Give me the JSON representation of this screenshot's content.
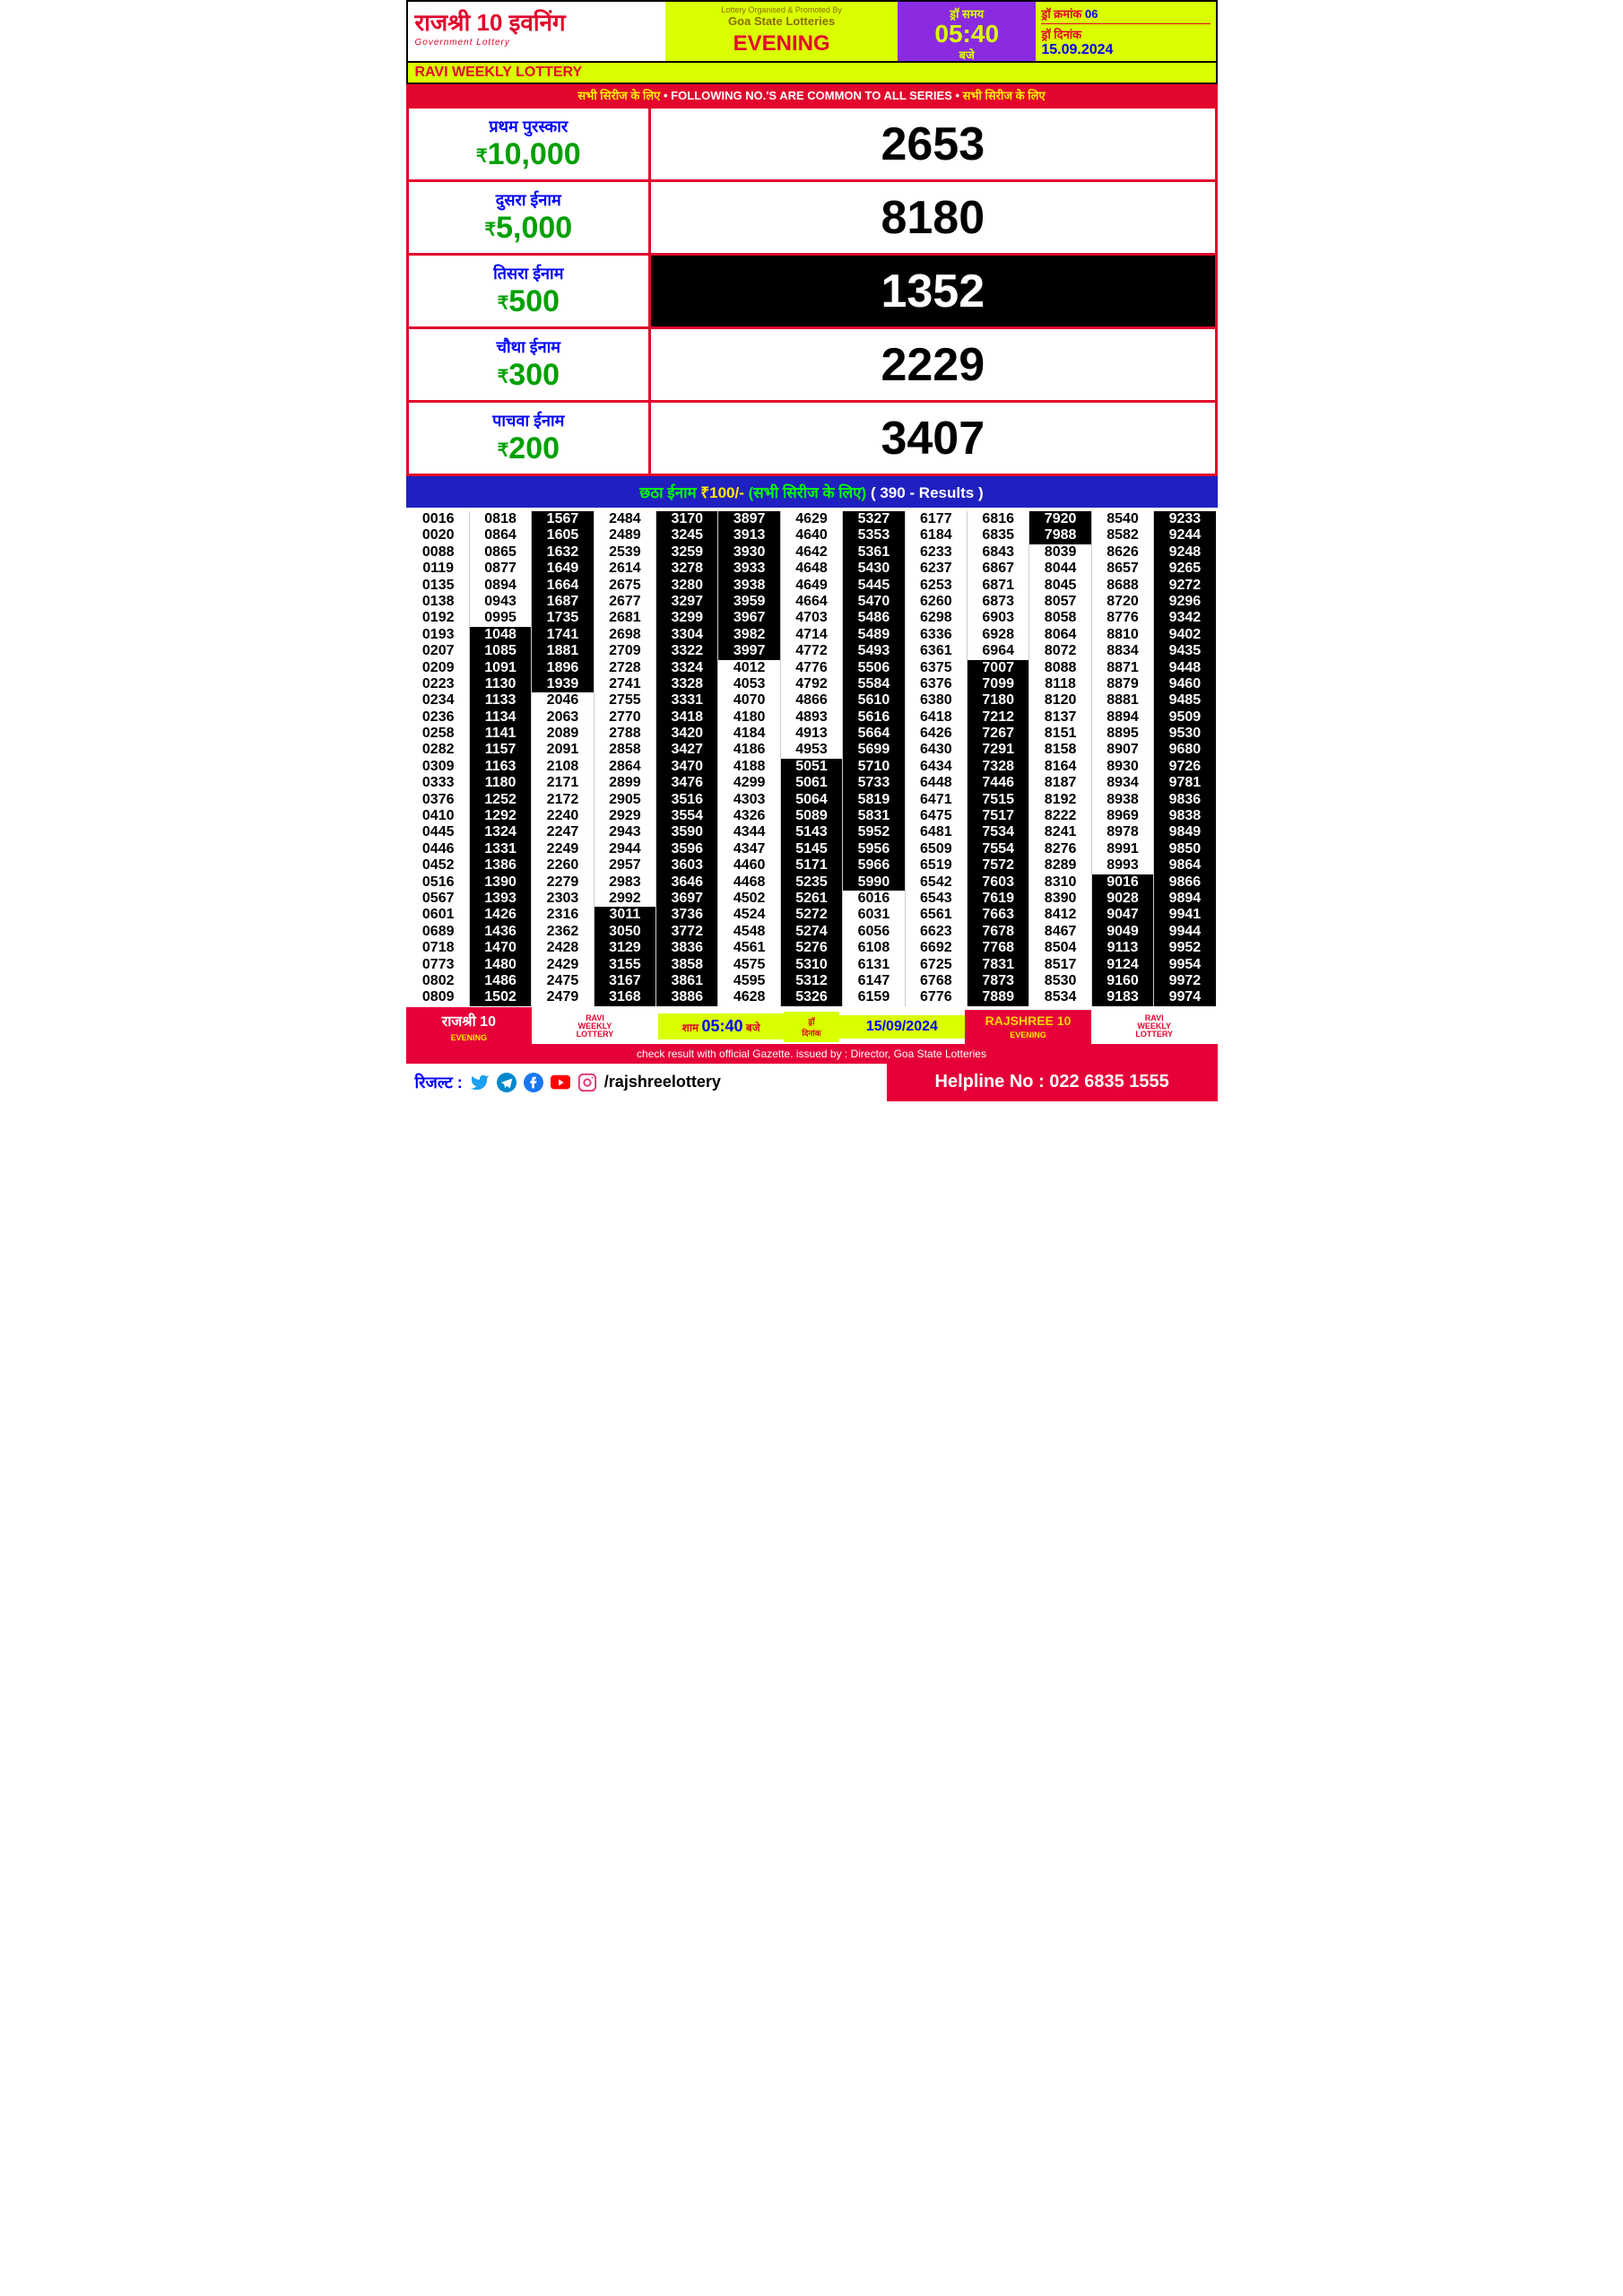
{
  "header": {
    "title": "राजश्री 10 इवनिंग",
    "subtitle": "Government Lottery",
    "organised_by": "Lottery Organised & Promoted By",
    "org_name": "Goa State Lotteries",
    "evening": "EVENING",
    "draw_time_label": "ड्रॉ समय",
    "draw_time": "05:40",
    "draw_time_suffix": "बजे",
    "draw_no_label": "ड्रॉ क्रमांक",
    "draw_no": "06",
    "draw_date_label": "ड्रॉ दिनांक",
    "draw_date": "15.09.2024",
    "ravi": "RAVI WEEKLY LOTTERY"
  },
  "common_bar": {
    "hi": "सभी सिरीज के लिए",
    "en": "FOLLOWING NO.'S ARE COMMON TO ALL SERIES"
  },
  "prizes": [
    {
      "name": "प्रथम पुरस्कार",
      "amount": "10,000",
      "number": "2653",
      "inv": false
    },
    {
      "name": "दुसरा ईनाम",
      "amount": "5,000",
      "number": "8180",
      "inv": false
    },
    {
      "name": "तिसरा ईनाम",
      "amount": "500",
      "number": "1352",
      "inv": true
    },
    {
      "name": "चौथा ईनाम",
      "amount": "300",
      "number": "2229",
      "inv": false
    },
    {
      "name": "पाचवा ईनाम",
      "amount": "200",
      "number": "3407",
      "inv": false
    }
  ],
  "sixth": {
    "label": "छठा ईनाम",
    "amount": "₹100/-",
    "note": "(सभी सिरीज के लिए)",
    "results": "( 390 - Results )"
  },
  "columns": [
    [
      {
        "n": "0016"
      },
      {
        "n": "0020"
      },
      {
        "n": "0088"
      },
      {
        "n": "0119"
      },
      {
        "n": "0135"
      },
      {
        "n": "0138"
      },
      {
        "n": "0192"
      },
      {
        "n": "0193"
      },
      {
        "n": "0207"
      },
      {
        "n": "0209"
      },
      {
        "n": "0223"
      },
      {
        "n": "0234"
      },
      {
        "n": "0236"
      },
      {
        "n": "0258"
      },
      {
        "n": "0282"
      },
      {
        "n": "0309"
      },
      {
        "n": "0333"
      },
      {
        "n": "0376"
      },
      {
        "n": "0410"
      },
      {
        "n": "0445"
      },
      {
        "n": "0446"
      },
      {
        "n": "0452"
      },
      {
        "n": "0516"
      },
      {
        "n": "0567"
      },
      {
        "n": "0601"
      },
      {
        "n": "0689"
      },
      {
        "n": "0718"
      },
      {
        "n": "0773"
      },
      {
        "n": "0802"
      },
      {
        "n": "0809"
      }
    ],
    [
      {
        "n": "0818"
      },
      {
        "n": "0864"
      },
      {
        "n": "0865"
      },
      {
        "n": "0877"
      },
      {
        "n": "0894"
      },
      {
        "n": "0943"
      },
      {
        "n": "0995"
      },
      {
        "n": "1048",
        "i": 1
      },
      {
        "n": "1085",
        "i": 1
      },
      {
        "n": "1091",
        "i": 1
      },
      {
        "n": "1130",
        "i": 1
      },
      {
        "n": "1133",
        "i": 1
      },
      {
        "n": "1134",
        "i": 1
      },
      {
        "n": "1141",
        "i": 1
      },
      {
        "n": "1157",
        "i": 1
      },
      {
        "n": "1163",
        "i": 1
      },
      {
        "n": "1180",
        "i": 1
      },
      {
        "n": "1252",
        "i": 1
      },
      {
        "n": "1292",
        "i": 1
      },
      {
        "n": "1324",
        "i": 1
      },
      {
        "n": "1331",
        "i": 1
      },
      {
        "n": "1386",
        "i": 1
      },
      {
        "n": "1390",
        "i": 1
      },
      {
        "n": "1393",
        "i": 1
      },
      {
        "n": "1426",
        "i": 1
      },
      {
        "n": "1436",
        "i": 1
      },
      {
        "n": "1470",
        "i": 1
      },
      {
        "n": "1480",
        "i": 1
      },
      {
        "n": "1486",
        "i": 1
      },
      {
        "n": "1502",
        "i": 1
      }
    ],
    [
      {
        "n": "1567",
        "i": 1
      },
      {
        "n": "1605",
        "i": 1
      },
      {
        "n": "1632",
        "i": 1
      },
      {
        "n": "1649",
        "i": 1
      },
      {
        "n": "1664",
        "i": 1
      },
      {
        "n": "1687",
        "i": 1
      },
      {
        "n": "1735",
        "i": 1
      },
      {
        "n": "1741",
        "i": 1
      },
      {
        "n": "1881",
        "i": 1
      },
      {
        "n": "1896",
        "i": 1
      },
      {
        "n": "1939",
        "i": 1
      },
      {
        "n": "2046"
      },
      {
        "n": "2063"
      },
      {
        "n": "2089"
      },
      {
        "n": "2091"
      },
      {
        "n": "2108"
      },
      {
        "n": "2171"
      },
      {
        "n": "2172"
      },
      {
        "n": "2240"
      },
      {
        "n": "2247"
      },
      {
        "n": "2249"
      },
      {
        "n": "2260"
      },
      {
        "n": "2279"
      },
      {
        "n": "2303"
      },
      {
        "n": "2316"
      },
      {
        "n": "2362"
      },
      {
        "n": "2428"
      },
      {
        "n": "2429"
      },
      {
        "n": "2475"
      },
      {
        "n": "2479"
      }
    ],
    [
      {
        "n": "2484"
      },
      {
        "n": "2489"
      },
      {
        "n": "2539"
      },
      {
        "n": "2614"
      },
      {
        "n": "2675"
      },
      {
        "n": "2677"
      },
      {
        "n": "2681"
      },
      {
        "n": "2698"
      },
      {
        "n": "2709"
      },
      {
        "n": "2728"
      },
      {
        "n": "2741"
      },
      {
        "n": "2755"
      },
      {
        "n": "2770"
      },
      {
        "n": "2788"
      },
      {
        "n": "2858"
      },
      {
        "n": "2864"
      },
      {
        "n": "2899"
      },
      {
        "n": "2905"
      },
      {
        "n": "2929"
      },
      {
        "n": "2943"
      },
      {
        "n": "2944"
      },
      {
        "n": "2957"
      },
      {
        "n": "2983"
      },
      {
        "n": "2992"
      },
      {
        "n": "3011",
        "i": 1
      },
      {
        "n": "3050",
        "i": 1
      },
      {
        "n": "3129",
        "i": 1
      },
      {
        "n": "3155",
        "i": 1
      },
      {
        "n": "3167",
        "i": 1
      },
      {
        "n": "3168",
        "i": 1
      }
    ],
    [
      {
        "n": "3170",
        "i": 1
      },
      {
        "n": "3245",
        "i": 1
      },
      {
        "n": "3259",
        "i": 1
      },
      {
        "n": "3278",
        "i": 1
      },
      {
        "n": "3280",
        "i": 1
      },
      {
        "n": "3297",
        "i": 1
      },
      {
        "n": "3299",
        "i": 1
      },
      {
        "n": "3304",
        "i": 1
      },
      {
        "n": "3322",
        "i": 1
      },
      {
        "n": "3324",
        "i": 1
      },
      {
        "n": "3328",
        "i": 1
      },
      {
        "n": "3331",
        "i": 1
      },
      {
        "n": "3418",
        "i": 1
      },
      {
        "n": "3420",
        "i": 1
      },
      {
        "n": "3427",
        "i": 1
      },
      {
        "n": "3470",
        "i": 1
      },
      {
        "n": "3476",
        "i": 1
      },
      {
        "n": "3516",
        "i": 1
      },
      {
        "n": "3554",
        "i": 1
      },
      {
        "n": "3590",
        "i": 1
      },
      {
        "n": "3596",
        "i": 1
      },
      {
        "n": "3603",
        "i": 1
      },
      {
        "n": "3646",
        "i": 1
      },
      {
        "n": "3697",
        "i": 1
      },
      {
        "n": "3736",
        "i": 1
      },
      {
        "n": "3772",
        "i": 1
      },
      {
        "n": "3836",
        "i": 1
      },
      {
        "n": "3858",
        "i": 1
      },
      {
        "n": "3861",
        "i": 1
      },
      {
        "n": "3886",
        "i": 1
      }
    ],
    [
      {
        "n": "3897",
        "i": 1
      },
      {
        "n": "3913",
        "i": 1
      },
      {
        "n": "3930",
        "i": 1
      },
      {
        "n": "3933",
        "i": 1
      },
      {
        "n": "3938",
        "i": 1
      },
      {
        "n": "3959",
        "i": 1
      },
      {
        "n": "3967",
        "i": 1
      },
      {
        "n": "3982",
        "i": 1
      },
      {
        "n": "3997",
        "i": 1
      },
      {
        "n": "4012"
      },
      {
        "n": "4053"
      },
      {
        "n": "4070"
      },
      {
        "n": "4180"
      },
      {
        "n": "4184"
      },
      {
        "n": "4186"
      },
      {
        "n": "4188"
      },
      {
        "n": "4299"
      },
      {
        "n": "4303"
      },
      {
        "n": "4326"
      },
      {
        "n": "4344"
      },
      {
        "n": "4347"
      },
      {
        "n": "4460"
      },
      {
        "n": "4468"
      },
      {
        "n": "4502"
      },
      {
        "n": "4524"
      },
      {
        "n": "4548"
      },
      {
        "n": "4561"
      },
      {
        "n": "4575"
      },
      {
        "n": "4595"
      },
      {
        "n": "4628"
      }
    ],
    [
      {
        "n": "4629"
      },
      {
        "n": "4640"
      },
      {
        "n": "4642"
      },
      {
        "n": "4648"
      },
      {
        "n": "4649"
      },
      {
        "n": "4664"
      },
      {
        "n": "4703"
      },
      {
        "n": "4714"
      },
      {
        "n": "4772"
      },
      {
        "n": "4776"
      },
      {
        "n": "4792"
      },
      {
        "n": "4866"
      },
      {
        "n": "4893"
      },
      {
        "n": "4913"
      },
      {
        "n": "4953"
      },
      {
        "n": "5051",
        "i": 1
      },
      {
        "n": "5061",
        "i": 1
      },
      {
        "n": "5064",
        "i": 1
      },
      {
        "n": "5089",
        "i": 1
      },
      {
        "n": "5143",
        "i": 1
      },
      {
        "n": "5145",
        "i": 1
      },
      {
        "n": "5171",
        "i": 1
      },
      {
        "n": "5235",
        "i": 1
      },
      {
        "n": "5261",
        "i": 1
      },
      {
        "n": "5272",
        "i": 1
      },
      {
        "n": "5274",
        "i": 1
      },
      {
        "n": "5276",
        "i": 1
      },
      {
        "n": "5310",
        "i": 1
      },
      {
        "n": "5312",
        "i": 1
      },
      {
        "n": "5326",
        "i": 1
      }
    ],
    [
      {
        "n": "5327",
        "i": 1
      },
      {
        "n": "5353",
        "i": 1
      },
      {
        "n": "5361",
        "i": 1
      },
      {
        "n": "5430",
        "i": 1
      },
      {
        "n": "5445",
        "i": 1
      },
      {
        "n": "5470",
        "i": 1
      },
      {
        "n": "5486",
        "i": 1
      },
      {
        "n": "5489",
        "i": 1
      },
      {
        "n": "5493",
        "i": 1
      },
      {
        "n": "5506",
        "i": 1
      },
      {
        "n": "5584",
        "i": 1
      },
      {
        "n": "5610",
        "i": 1
      },
      {
        "n": "5616",
        "i": 1
      },
      {
        "n": "5664",
        "i": 1
      },
      {
        "n": "5699",
        "i": 1
      },
      {
        "n": "5710",
        "i": 1
      },
      {
        "n": "5733",
        "i": 1
      },
      {
        "n": "5819",
        "i": 1
      },
      {
        "n": "5831",
        "i": 1
      },
      {
        "n": "5952",
        "i": 1
      },
      {
        "n": "5956",
        "i": 1
      },
      {
        "n": "5966",
        "i": 1
      },
      {
        "n": "5990",
        "i": 1
      },
      {
        "n": "6016"
      },
      {
        "n": "6031"
      },
      {
        "n": "6056"
      },
      {
        "n": "6108"
      },
      {
        "n": "6131"
      },
      {
        "n": "6147"
      },
      {
        "n": "6159"
      }
    ],
    [
      {
        "n": "6177"
      },
      {
        "n": "6184"
      },
      {
        "n": "6233"
      },
      {
        "n": "6237"
      },
      {
        "n": "6253"
      },
      {
        "n": "6260"
      },
      {
        "n": "6298"
      },
      {
        "n": "6336"
      },
      {
        "n": "6361"
      },
      {
        "n": "6375"
      },
      {
        "n": "6376"
      },
      {
        "n": "6380"
      },
      {
        "n": "6418"
      },
      {
        "n": "6426"
      },
      {
        "n": "6430"
      },
      {
        "n": "6434"
      },
      {
        "n": "6448"
      },
      {
        "n": "6471"
      },
      {
        "n": "6475"
      },
      {
        "n": "6481"
      },
      {
        "n": "6509"
      },
      {
        "n": "6519"
      },
      {
        "n": "6542"
      },
      {
        "n": "6543"
      },
      {
        "n": "6561"
      },
      {
        "n": "6623"
      },
      {
        "n": "6692"
      },
      {
        "n": "6725"
      },
      {
        "n": "6768"
      },
      {
        "n": "6776"
      }
    ],
    [
      {
        "n": "6816"
      },
      {
        "n": "6835"
      },
      {
        "n": "6843"
      },
      {
        "n": "6867"
      },
      {
        "n": "6871"
      },
      {
        "n": "6873"
      },
      {
        "n": "6903"
      },
      {
        "n": "6928"
      },
      {
        "n": "6964"
      },
      {
        "n": "7007",
        "i": 1
      },
      {
        "n": "7099",
        "i": 1
      },
      {
        "n": "7180",
        "i": 1
      },
      {
        "n": "7212",
        "i": 1
      },
      {
        "n": "7267",
        "i": 1
      },
      {
        "n": "7291",
        "i": 1
      },
      {
        "n": "7328",
        "i": 1
      },
      {
        "n": "7446",
        "i": 1
      },
      {
        "n": "7515",
        "i": 1
      },
      {
        "n": "7517",
        "i": 1
      },
      {
        "n": "7534",
        "i": 1
      },
      {
        "n": "7554",
        "i": 1
      },
      {
        "n": "7572",
        "i": 1
      },
      {
        "n": "7603",
        "i": 1
      },
      {
        "n": "7619",
        "i": 1
      },
      {
        "n": "7663",
        "i": 1
      },
      {
        "n": "7678",
        "i": 1
      },
      {
        "n": "7768",
        "i": 1
      },
      {
        "n": "7831",
        "i": 1
      },
      {
        "n": "7873",
        "i": 1
      },
      {
        "n": "7889",
        "i": 1
      }
    ],
    [
      {
        "n": "7920",
        "i": 1
      },
      {
        "n": "7988",
        "i": 1
      },
      {
        "n": "8039"
      },
      {
        "n": "8044"
      },
      {
        "n": "8045"
      },
      {
        "n": "8057"
      },
      {
        "n": "8058"
      },
      {
        "n": "8064"
      },
      {
        "n": "8072"
      },
      {
        "n": "8088"
      },
      {
        "n": "8118"
      },
      {
        "n": "8120"
      },
      {
        "n": "8137"
      },
      {
        "n": "8151"
      },
      {
        "n": "8158"
      },
      {
        "n": "8164"
      },
      {
        "n": "8187"
      },
      {
        "n": "8192"
      },
      {
        "n": "8222"
      },
      {
        "n": "8241"
      },
      {
        "n": "8276"
      },
      {
        "n": "8289"
      },
      {
        "n": "8310"
      },
      {
        "n": "8390"
      },
      {
        "n": "8412"
      },
      {
        "n": "8467"
      },
      {
        "n": "8504"
      },
      {
        "n": "8517"
      },
      {
        "n": "8530"
      },
      {
        "n": "8534"
      }
    ],
    [
      {
        "n": "8540"
      },
      {
        "n": "8582"
      },
      {
        "n": "8626"
      },
      {
        "n": "8657"
      },
      {
        "n": "8688"
      },
      {
        "n": "8720"
      },
      {
        "n": "8776"
      },
      {
        "n": "8810"
      },
      {
        "n": "8834"
      },
      {
        "n": "8871"
      },
      {
        "n": "8879"
      },
      {
        "n": "8881"
      },
      {
        "n": "8894"
      },
      {
        "n": "8895"
      },
      {
        "n": "8907"
      },
      {
        "n": "8930"
      },
      {
        "n": "8934"
      },
      {
        "n": "8938"
      },
      {
        "n": "8969"
      },
      {
        "n": "8978"
      },
      {
        "n": "8991"
      },
      {
        "n": "8993"
      },
      {
        "n": "9016",
        "i": 1
      },
      {
        "n": "9028",
        "i": 1
      },
      {
        "n": "9047",
        "i": 1
      },
      {
        "n": "9049",
        "i": 1
      },
      {
        "n": "9113",
        "i": 1
      },
      {
        "n": "9124",
        "i": 1
      },
      {
        "n": "9160",
        "i": 1
      },
      {
        "n": "9183",
        "i": 1
      }
    ],
    [
      {
        "n": "9233",
        "i": 1
      },
      {
        "n": "9244",
        "i": 1
      },
      {
        "n": "9248",
        "i": 1
      },
      {
        "n": "9265",
        "i": 1
      },
      {
        "n": "9272",
        "i": 1
      },
      {
        "n": "9296",
        "i": 1
      },
      {
        "n": "9342",
        "i": 1
      },
      {
        "n": "9402",
        "i": 1
      },
      {
        "n": "9435",
        "i": 1
      },
      {
        "n": "9448",
        "i": 1
      },
      {
        "n": "9460",
        "i": 1
      },
      {
        "n": "9485",
        "i": 1
      },
      {
        "n": "9509",
        "i": 1
      },
      {
        "n": "9530",
        "i": 1
      },
      {
        "n": "9680",
        "i": 1
      },
      {
        "n": "9726",
        "i": 1
      },
      {
        "n": "9781",
        "i": 1
      },
      {
        "n": "9836",
        "i": 1
      },
      {
        "n": "9838",
        "i": 1
      },
      {
        "n": "9849",
        "i": 1
      },
      {
        "n": "9850",
        "i": 1
      },
      {
        "n": "9864",
        "i": 1
      },
      {
        "n": "9866",
        "i": 1
      },
      {
        "n": "9894",
        "i": 1
      },
      {
        "n": "9941",
        "i": 1
      },
      {
        "n": "9944",
        "i": 1
      },
      {
        "n": "9952",
        "i": 1
      },
      {
        "n": "9954",
        "i": 1
      },
      {
        "n": "9972",
        "i": 1
      },
      {
        "n": "9974",
        "i": 1
      }
    ]
  ],
  "footer": {
    "brand_hi": "राजश्री 10",
    "brand_sub": "EVENING",
    "ravi_lines": [
      "RAVI",
      "WEEKLY",
      "LOTTERY"
    ],
    "sham": "शाम",
    "time": "05:40",
    "baje": "बजे",
    "dinank": "ड्रॉ\nदिनांक",
    "date": "15/09/2024",
    "brand_en": "RAJSHREE 10",
    "gazette": "check result with official Gazette. issued by : Director, Goa State Lotteries",
    "result_label": "रिजल्ट :",
    "handle": "/rajshreelottery",
    "helpline": "Helpline No : 022 6835 1555"
  },
  "colors": {
    "red": "#e2062c",
    "green": "#00a000",
    "blue": "#0000ff",
    "yellow": "#d9ff00",
    "purple": "#8a2be2",
    "pink": "#e60039",
    "darkblue": "#2020c0"
  }
}
